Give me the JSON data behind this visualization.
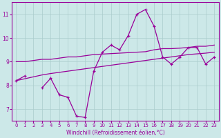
{
  "x": [
    0,
    1,
    2,
    3,
    4,
    5,
    6,
    7,
    8,
    9,
    10,
    11,
    12,
    13,
    14,
    15,
    16,
    17,
    18,
    19,
    20,
    21,
    22,
    23
  ],
  "line_volatile": [
    8.2,
    8.4,
    null,
    7.9,
    8.3,
    7.6,
    7.5,
    6.7,
    6.65,
    8.6,
    9.4,
    9.7,
    9.5,
    10.1,
    11.0,
    11.2,
    10.5,
    9.2,
    8.9,
    9.2,
    9.6,
    9.6,
    8.9,
    9.2
  ],
  "line_upper": [
    9.0,
    9.0,
    9.05,
    9.1,
    9.1,
    9.15,
    9.2,
    9.2,
    9.25,
    9.3,
    9.32,
    9.34,
    9.36,
    9.38,
    9.4,
    9.42,
    9.5,
    9.55,
    9.55,
    9.57,
    9.6,
    9.65,
    9.65,
    9.7
  ],
  "line_lower": [
    8.2,
    8.28,
    8.36,
    8.44,
    8.5,
    8.55,
    8.6,
    8.65,
    8.7,
    8.75,
    8.8,
    8.85,
    8.9,
    8.95,
    9.0,
    9.05,
    9.1,
    9.15,
    9.2,
    9.25,
    9.3,
    9.33,
    9.36,
    9.4
  ],
  "bg_color": "#cce8e8",
  "grid_color": "#aacccc",
  "line_color": "#990099",
  "xlabel": "Windchill (Refroidissement éolien,°C)",
  "ylim": [
    6.5,
    11.5
  ],
  "xlim": [
    -0.5,
    23.5
  ],
  "yticks": [
    7,
    8,
    9,
    10,
    11
  ],
  "xticks": [
    0,
    1,
    2,
    3,
    4,
    5,
    6,
    7,
    8,
    9,
    10,
    11,
    12,
    13,
    14,
    15,
    16,
    17,
    18,
    19,
    20,
    21,
    22,
    23
  ],
  "xlabel_fontsize": 5.5,
  "tick_fontsize": 5.0,
  "linewidth": 0.9,
  "marker": "+",
  "markersize": 3.5,
  "markeredgewidth": 0.9
}
